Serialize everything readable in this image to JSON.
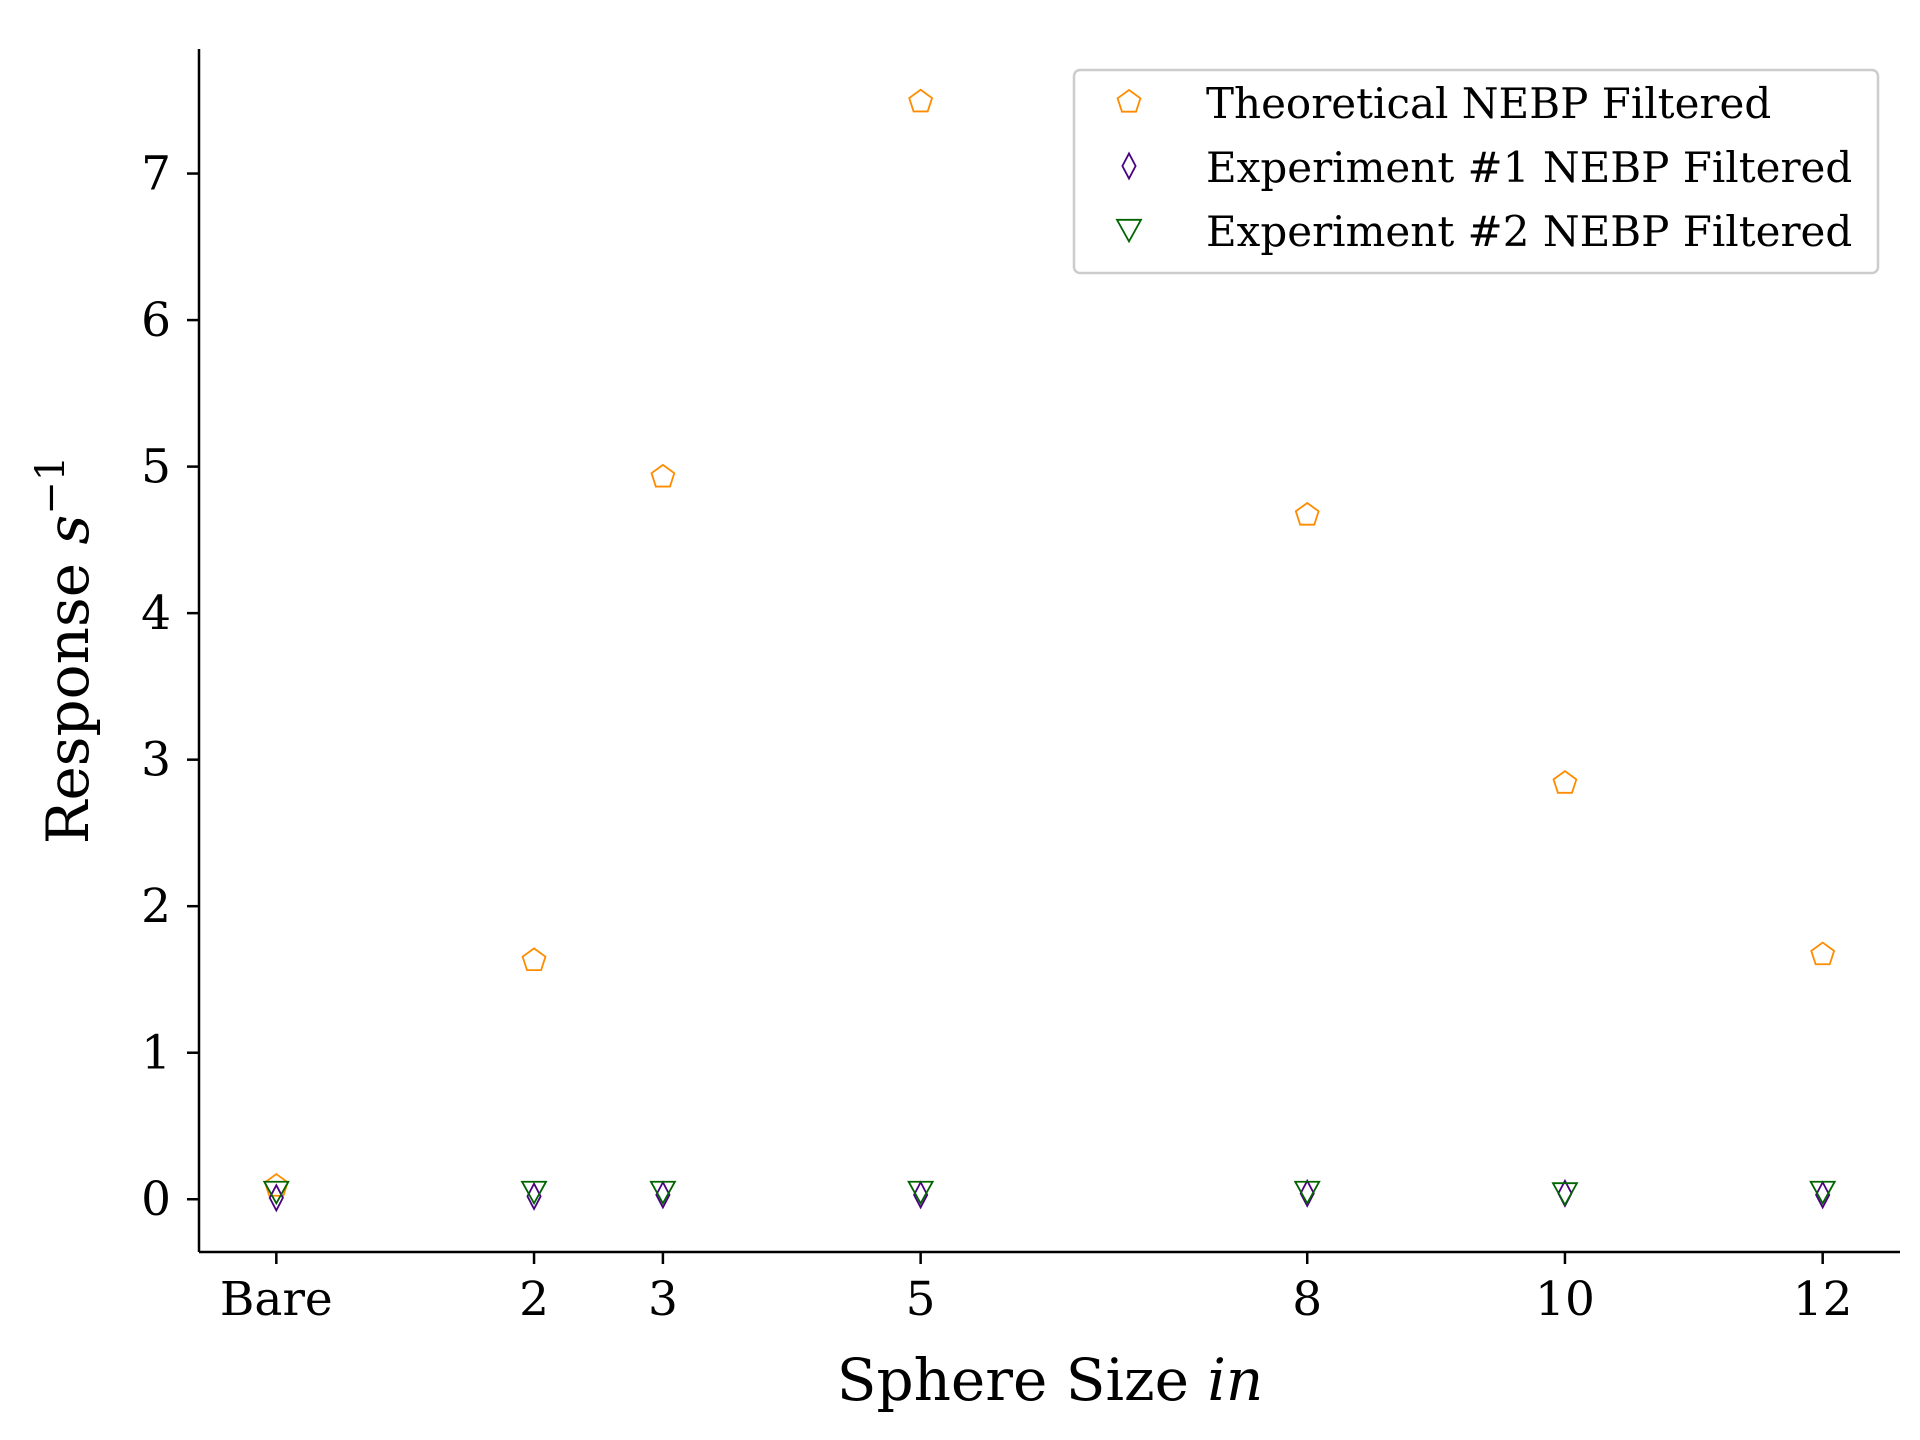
{
  "chart_data": {
    "type": "scatter",
    "x_ticks": [
      {
        "value": 0,
        "label": "Bare"
      },
      {
        "value": 2,
        "label": "2"
      },
      {
        "value": 3,
        "label": "3"
      },
      {
        "value": 5,
        "label": "5"
      },
      {
        "value": 8,
        "label": "8"
      },
      {
        "value": 10,
        "label": "10"
      },
      {
        "value": 12,
        "label": "12"
      }
    ],
    "y_ticks": [
      0,
      1,
      2,
      3,
      4,
      5,
      6,
      7
    ],
    "xlim": [
      -0.6,
      12.6
    ],
    "ylim": [
      -0.36,
      7.85
    ],
    "xlabel": "Sphere Size",
    "xlabel_unit": "in",
    "ylabel": "Response",
    "ylabel_unit": "s",
    "ylabel_exponent": "−1",
    "grid": false,
    "legend_position": "top-right",
    "series": [
      {
        "name": "Theoretical NEBP Filtered",
        "marker": "pentagon",
        "color": "#ff8c00",
        "x": [
          0,
          2,
          3,
          5,
          8,
          10,
          12
        ],
        "y": [
          0.09,
          1.63,
          4.93,
          7.49,
          4.67,
          2.84,
          1.67
        ]
      },
      {
        "name": "Experiment #1 NEBP Filtered",
        "marker": "diamond",
        "color": "#4b0082",
        "x": [
          0,
          2,
          3,
          5,
          8,
          10,
          12
        ],
        "y": [
          0.01,
          0.02,
          0.03,
          0.03,
          0.04,
          0.04,
          0.03
        ]
      },
      {
        "name": "Experiment #2 NEBP Filtered",
        "marker": "triangle-down",
        "color": "#006400",
        "x": [
          0,
          2,
          3,
          5,
          8,
          10,
          12
        ],
        "y": [
          0.05,
          0.05,
          0.05,
          0.05,
          0.05,
          0.04,
          0.05
        ]
      }
    ]
  }
}
